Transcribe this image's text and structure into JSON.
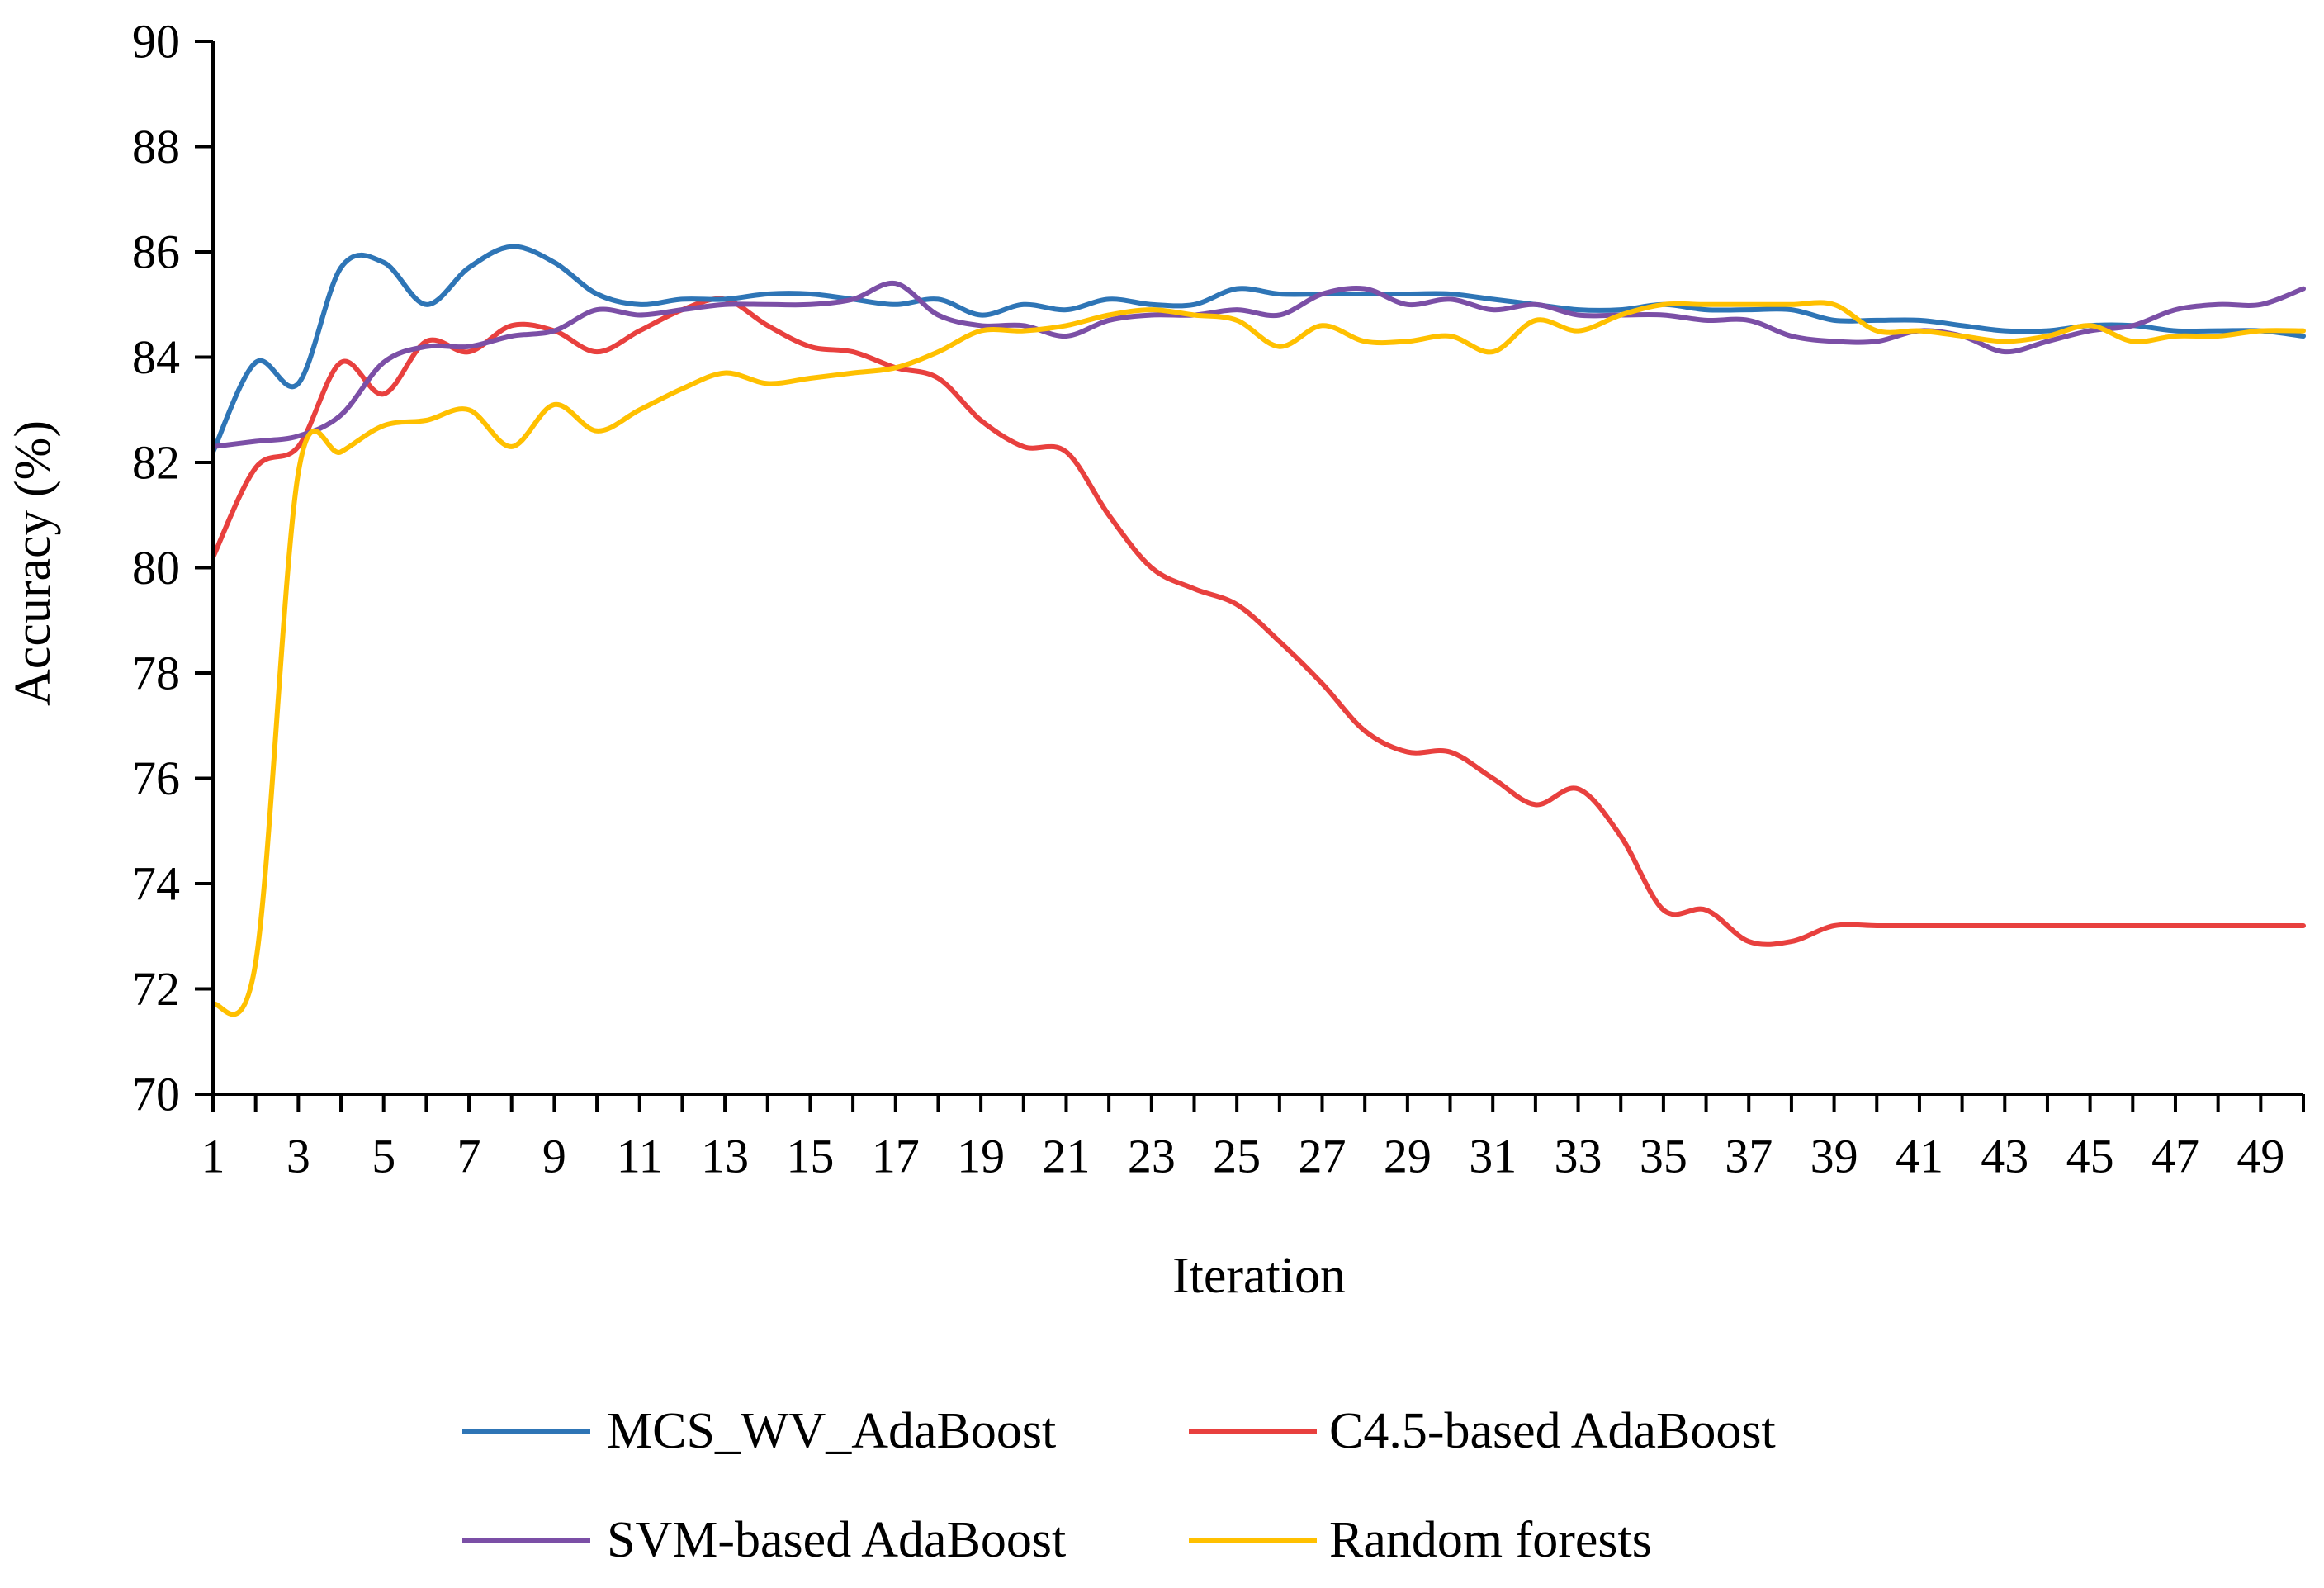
{
  "chart_data": {
    "type": "line",
    "xlabel": "Iteration",
    "ylabel": "Accuracy (%)",
    "xlim": [
      1,
      50
    ],
    "ylim": [
      70,
      90
    ],
    "grid": false,
    "legend_position": "bottom",
    "x_ticks": [
      "1",
      "3",
      "5",
      "7",
      "9",
      "11",
      "13",
      "15",
      "17",
      "19",
      "21",
      "23",
      "25",
      "27",
      "29",
      "31",
      "33",
      "35",
      "37",
      "39",
      "41",
      "43",
      "45",
      "47",
      "49"
    ],
    "y_ticks": [
      "70",
      "72",
      "74",
      "76",
      "78",
      "80",
      "82",
      "84",
      "86",
      "88",
      "90"
    ],
    "x": [
      1,
      2,
      3,
      4,
      5,
      6,
      7,
      8,
      9,
      10,
      11,
      12,
      13,
      14,
      15,
      16,
      17,
      18,
      19,
      20,
      21,
      22,
      23,
      24,
      25,
      26,
      27,
      28,
      29,
      30,
      31,
      32,
      33,
      34,
      35,
      36,
      37,
      38,
      39,
      40,
      41,
      42,
      43,
      44,
      45,
      46,
      47,
      48,
      49,
      50
    ],
    "series": [
      {
        "name": "MCS_WV_AdaBoost",
        "color": "#2E75B6",
        "values": [
          82.2,
          83.9,
          83.5,
          85.7,
          85.8,
          85.0,
          85.7,
          86.1,
          85.8,
          85.2,
          85.0,
          85.1,
          85.1,
          85.2,
          85.2,
          85.1,
          85.0,
          85.1,
          84.8,
          85.0,
          84.9,
          85.1,
          85.0,
          85.0,
          85.3,
          85.2,
          85.2,
          85.2,
          85.2,
          85.2,
          85.1,
          85.0,
          84.9,
          84.9,
          85.0,
          84.9,
          84.9,
          84.9,
          84.7,
          84.7,
          84.7,
          84.6,
          84.5,
          84.5,
          84.6,
          84.6,
          84.5,
          84.5,
          84.5,
          84.4
        ]
      },
      {
        "name": "C4.5-based AdaBoost",
        "color": "#E8403E",
        "values": [
          80.2,
          81.9,
          82.3,
          83.9,
          83.3,
          84.3,
          84.1,
          84.6,
          84.5,
          84.1,
          84.5,
          84.9,
          85.1,
          84.6,
          84.2,
          84.1,
          83.8,
          83.6,
          82.8,
          82.3,
          82.2,
          81.0,
          80.0,
          79.6,
          79.3,
          78.6,
          77.8,
          76.9,
          76.5,
          76.5,
          76.0,
          75.5,
          75.8,
          74.9,
          73.5,
          73.5,
          72.9,
          72.9,
          73.2,
          73.2,
          73.2,
          73.2,
          73.2,
          73.2,
          73.2,
          73.2,
          73.2,
          73.2,
          73.2,
          73.2
        ]
      },
      {
        "name": "SVM-based AdaBoost",
        "color": "#7B4FA6",
        "values": [
          82.3,
          82.4,
          82.5,
          82.9,
          83.9,
          84.2,
          84.2,
          84.4,
          84.5,
          84.9,
          84.8,
          84.9,
          85.0,
          85.0,
          85.0,
          85.1,
          85.4,
          84.8,
          84.6,
          84.6,
          84.4,
          84.7,
          84.8,
          84.8,
          84.9,
          84.8,
          85.2,
          85.3,
          85.0,
          85.1,
          84.9,
          85.0,
          84.8,
          84.8,
          84.8,
          84.7,
          84.7,
          84.4,
          84.3,
          84.3,
          84.5,
          84.4,
          84.1,
          84.3,
          84.5,
          84.6,
          84.9,
          85.0,
          85.0,
          85.3
        ]
      },
      {
        "name": "Random forests",
        "color": "#FFC000",
        "values": [
          71.7,
          72.5,
          81.8,
          82.2,
          82.7,
          82.8,
          83.0,
          82.3,
          83.1,
          82.6,
          83.0,
          83.4,
          83.7,
          83.5,
          83.6,
          83.7,
          83.8,
          84.1,
          84.5,
          84.5,
          84.6,
          84.8,
          84.9,
          84.8,
          84.7,
          84.2,
          84.6,
          84.3,
          84.3,
          84.4,
          84.1,
          84.7,
          84.5,
          84.8,
          85.0,
          85.0,
          85.0,
          85.0,
          85.0,
          84.5,
          84.5,
          84.4,
          84.3,
          84.4,
          84.6,
          84.3,
          84.4,
          84.4,
          84.5,
          84.5
        ]
      }
    ]
  }
}
